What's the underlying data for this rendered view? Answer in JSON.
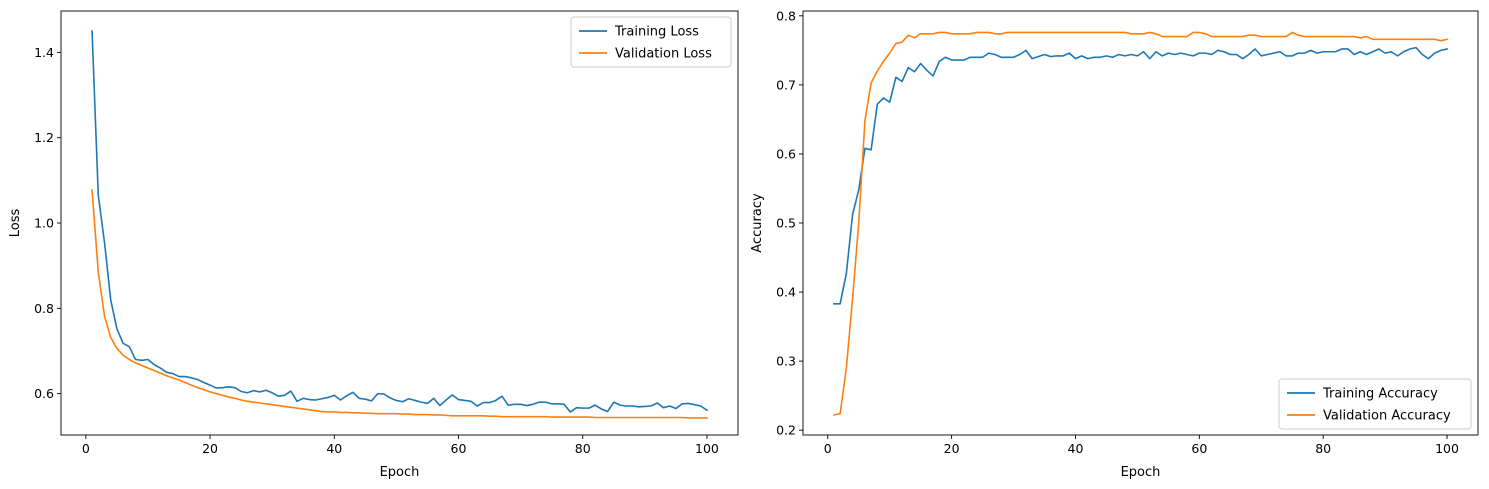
{
  "chart_data": [
    {
      "type": "line",
      "xlabel": "Epoch",
      "ylabel": "Loss",
      "xlim": [
        -4,
        105
      ],
      "ylim": [
        0.503,
        1.497
      ],
      "xticks": [
        0,
        20,
        40,
        60,
        80,
        100
      ],
      "xtick_labels": [
        "0",
        "20",
        "40",
        "60",
        "80",
        "100"
      ],
      "yticks": [
        0.6,
        0.8,
        1.0,
        1.2,
        1.4
      ],
      "ytick_labels": [
        "0.6",
        "0.8",
        "1.0",
        "1.2",
        "1.4"
      ],
      "legend": "top-right",
      "grid": false,
      "series": [
        {
          "name": "Training Loss",
          "color": "#1f77b4",
          "values": [
            1.45,
            1.065,
            0.955,
            0.82,
            0.752,
            0.718,
            0.71,
            0.68,
            0.678,
            0.68,
            0.668,
            0.66,
            0.65,
            0.647,
            0.64,
            0.64,
            0.637,
            0.633,
            0.626,
            0.62,
            0.613,
            0.614,
            0.616,
            0.614,
            0.605,
            0.602,
            0.607,
            0.604,
            0.608,
            0.602,
            0.594,
            0.596,
            0.606,
            0.582,
            0.589,
            0.586,
            0.585,
            0.588,
            0.591,
            0.596,
            0.585,
            0.595,
            0.603,
            0.589,
            0.587,
            0.583,
            0.6,
            0.599,
            0.59,
            0.584,
            0.581,
            0.588,
            0.584,
            0.58,
            0.577,
            0.589,
            0.572,
            0.585,
            0.597,
            0.586,
            0.584,
            0.582,
            0.571,
            0.579,
            0.579,
            0.584,
            0.594,
            0.573,
            0.575,
            0.575,
            0.572,
            0.575,
            0.58,
            0.58,
            0.576,
            0.576,
            0.575,
            0.557,
            0.567,
            0.566,
            0.566,
            0.573,
            0.564,
            0.558,
            0.58,
            0.573,
            0.571,
            0.571,
            0.569,
            0.57,
            0.571,
            0.578,
            0.567,
            0.571,
            0.565,
            0.576,
            0.577,
            0.574,
            0.571,
            0.561
          ]
        },
        {
          "name": "Validation Loss",
          "color": "#ff7f0e",
          "values": [
            1.077,
            0.885,
            0.782,
            0.732,
            0.706,
            0.69,
            0.68,
            0.672,
            0.666,
            0.66,
            0.654,
            0.648,
            0.642,
            0.637,
            0.632,
            0.626,
            0.62,
            0.614,
            0.609,
            0.604,
            0.6,
            0.596,
            0.592,
            0.589,
            0.585,
            0.582,
            0.58,
            0.578,
            0.576,
            0.574,
            0.572,
            0.57,
            0.568,
            0.566,
            0.564,
            0.562,
            0.56,
            0.558,
            0.557,
            0.557,
            0.556,
            0.556,
            0.555,
            0.555,
            0.554,
            0.554,
            0.553,
            0.553,
            0.553,
            0.553,
            0.552,
            0.552,
            0.551,
            0.551,
            0.551,
            0.55,
            0.55,
            0.549,
            0.548,
            0.548,
            0.548,
            0.548,
            0.548,
            0.548,
            0.547,
            0.547,
            0.546,
            0.546,
            0.546,
            0.546,
            0.546,
            0.546,
            0.546,
            0.546,
            0.545,
            0.545,
            0.545,
            0.545,
            0.545,
            0.545,
            0.545,
            0.544,
            0.544,
            0.544,
            0.544,
            0.544,
            0.544,
            0.544,
            0.544,
            0.544,
            0.544,
            0.544,
            0.544,
            0.544,
            0.544,
            0.544,
            0.543,
            0.543,
            0.543,
            0.543
          ]
        }
      ]
    },
    {
      "type": "line",
      "xlabel": "Epoch",
      "ylabel": "Accuracy",
      "xlim": [
        -4,
        105
      ],
      "ylim": [
        0.193,
        0.807
      ],
      "xticks": [
        0,
        20,
        40,
        60,
        80,
        100
      ],
      "xtick_labels": [
        "0",
        "20",
        "40",
        "60",
        "80",
        "100"
      ],
      "yticks": [
        0.2,
        0.3,
        0.4,
        0.5,
        0.6,
        0.7,
        0.8
      ],
      "ytick_labels": [
        "0.2",
        "0.3",
        "0.4",
        "0.5",
        "0.6",
        "0.7",
        "0.8"
      ],
      "legend": "bottom-right",
      "grid": false,
      "series": [
        {
          "name": "Training Accuracy",
          "color": "#1f77b4",
          "values": [
            0.383,
            0.383,
            0.427,
            0.512,
            0.548,
            0.608,
            0.606,
            0.672,
            0.681,
            0.675,
            0.711,
            0.705,
            0.725,
            0.719,
            0.731,
            0.721,
            0.713,
            0.734,
            0.74,
            0.736,
            0.736,
            0.736,
            0.74,
            0.74,
            0.74,
            0.746,
            0.744,
            0.74,
            0.74,
            0.74,
            0.744,
            0.75,
            0.738,
            0.741,
            0.744,
            0.741,
            0.742,
            0.742,
            0.746,
            0.738,
            0.742,
            0.738,
            0.74,
            0.74,
            0.742,
            0.74,
            0.744,
            0.742,
            0.744,
            0.742,
            0.748,
            0.738,
            0.748,
            0.742,
            0.746,
            0.744,
            0.746,
            0.744,
            0.742,
            0.746,
            0.746,
            0.744,
            0.75,
            0.748,
            0.744,
            0.744,
            0.738,
            0.744,
            0.752,
            0.742,
            0.744,
            0.746,
            0.748,
            0.742,
            0.742,
            0.746,
            0.746,
            0.75,
            0.746,
            0.748,
            0.748,
            0.748,
            0.752,
            0.752,
            0.744,
            0.748,
            0.744,
            0.748,
            0.752,
            0.746,
            0.748,
            0.742,
            0.748,
            0.752,
            0.754,
            0.744,
            0.738,
            0.746,
            0.75,
            0.752
          ]
        },
        {
          "name": "Validation Accuracy",
          "color": "#ff7f0e",
          "values": [
            0.222,
            0.224,
            0.29,
            0.39,
            0.5,
            0.648,
            0.703,
            0.72,
            0.734,
            0.746,
            0.76,
            0.762,
            0.772,
            0.768,
            0.774,
            0.774,
            0.774,
            0.776,
            0.776,
            0.774,
            0.774,
            0.774,
            0.774,
            0.776,
            0.776,
            0.776,
            0.774,
            0.774,
            0.776,
            0.776,
            0.776,
            0.776,
            0.776,
            0.776,
            0.776,
            0.776,
            0.776,
            0.776,
            0.776,
            0.776,
            0.776,
            0.776,
            0.776,
            0.776,
            0.776,
            0.776,
            0.776,
            0.776,
            0.774,
            0.774,
            0.774,
            0.776,
            0.774,
            0.77,
            0.77,
            0.77,
            0.77,
            0.77,
            0.776,
            0.776,
            0.774,
            0.77,
            0.77,
            0.77,
            0.77,
            0.77,
            0.77,
            0.772,
            0.772,
            0.77,
            0.77,
            0.77,
            0.77,
            0.77,
            0.776,
            0.772,
            0.77,
            0.77,
            0.77,
            0.77,
            0.77,
            0.77,
            0.77,
            0.77,
            0.77,
            0.768,
            0.77,
            0.766,
            0.766,
            0.766,
            0.766,
            0.766,
            0.766,
            0.766,
            0.766,
            0.766,
            0.766,
            0.766,
            0.764,
            0.766
          ]
        }
      ]
    }
  ]
}
